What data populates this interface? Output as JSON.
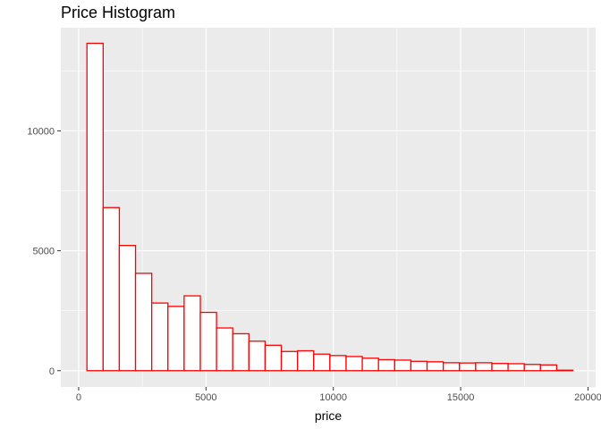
{
  "chart_data": {
    "type": "bar",
    "title": "Price Histogram",
    "xlabel": "price",
    "ylabel": "",
    "xlim": [
      -700,
      20300
    ],
    "ylim": [
      -680,
      14300
    ],
    "x_ticks": [
      0,
      5000,
      10000,
      15000,
      20000
    ],
    "x_tick_labels": [
      "0",
      "5000",
      "10000",
      "15000",
      "20000"
    ],
    "y_ticks": [
      0,
      5000,
      10000
    ],
    "y_tick_labels": [
      "0",
      "5000",
      "10000"
    ],
    "grid": true,
    "legend": "none",
    "colors": {
      "panel": "#ebebeb",
      "grid": "#ffffff",
      "bar_fill": "#ffffff",
      "bar_outline": "#ff0000"
    },
    "bins": [
      {
        "x0": 326,
        "x1": 962,
        "count": 13650
      },
      {
        "x0": 962,
        "x1": 1598,
        "count": 6800
      },
      {
        "x0": 1598,
        "x1": 2234,
        "count": 5220
      },
      {
        "x0": 2234,
        "x1": 2870,
        "count": 4060
      },
      {
        "x0": 2870,
        "x1": 3506,
        "count": 2820
      },
      {
        "x0": 3506,
        "x1": 4142,
        "count": 2680
      },
      {
        "x0": 4142,
        "x1": 4778,
        "count": 3120
      },
      {
        "x0": 4778,
        "x1": 5414,
        "count": 2430
      },
      {
        "x0": 5414,
        "x1": 6050,
        "count": 1780
      },
      {
        "x0": 6050,
        "x1": 6686,
        "count": 1540
      },
      {
        "x0": 6686,
        "x1": 7322,
        "count": 1230
      },
      {
        "x0": 7322,
        "x1": 7958,
        "count": 1060
      },
      {
        "x0": 7958,
        "x1": 8594,
        "count": 800
      },
      {
        "x0": 8594,
        "x1": 9230,
        "count": 830
      },
      {
        "x0": 9230,
        "x1": 9866,
        "count": 690
      },
      {
        "x0": 9866,
        "x1": 10502,
        "count": 630
      },
      {
        "x0": 10502,
        "x1": 11138,
        "count": 590
      },
      {
        "x0": 11138,
        "x1": 11774,
        "count": 520
      },
      {
        "x0": 11774,
        "x1": 12410,
        "count": 460
      },
      {
        "x0": 12410,
        "x1": 13046,
        "count": 440
      },
      {
        "x0": 13046,
        "x1": 13682,
        "count": 390
      },
      {
        "x0": 13682,
        "x1": 14318,
        "count": 370
      },
      {
        "x0": 14318,
        "x1": 14954,
        "count": 330
      },
      {
        "x0": 14954,
        "x1": 15590,
        "count": 320
      },
      {
        "x0": 15590,
        "x1": 16226,
        "count": 330
      },
      {
        "x0": 16226,
        "x1": 16862,
        "count": 300
      },
      {
        "x0": 16862,
        "x1": 17498,
        "count": 290
      },
      {
        "x0": 17498,
        "x1": 18134,
        "count": 260
      },
      {
        "x0": 18134,
        "x1": 18770,
        "count": 240
      },
      {
        "x0": 18770,
        "x1": 19406,
        "count": 20
      }
    ]
  }
}
